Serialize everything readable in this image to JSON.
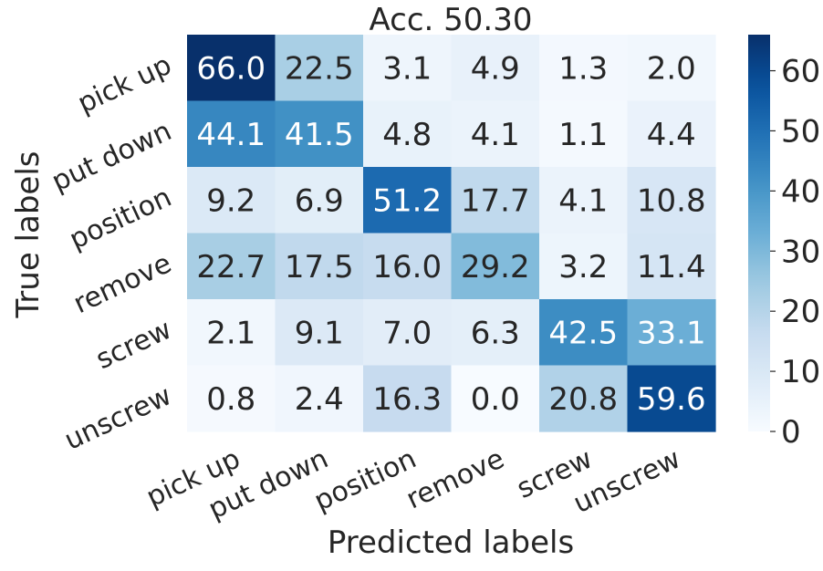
{
  "chart_data": {
    "type": "heatmap",
    "title": "Acc. 50.30",
    "xlabel": "Predicted labels",
    "ylabel": "True labels",
    "x_categories": [
      "pick up",
      "put down",
      "position",
      "remove",
      "screw",
      "unscrew"
    ],
    "y_categories": [
      "pick up",
      "put down",
      "position",
      "remove",
      "screw",
      "unscrew"
    ],
    "values": [
      [
        66.0,
        22.5,
        3.1,
        4.9,
        1.3,
        2.0
      ],
      [
        44.1,
        41.5,
        4.8,
        4.1,
        1.1,
        4.4
      ],
      [
        9.2,
        6.9,
        51.2,
        17.7,
        4.1,
        10.8
      ],
      [
        22.7,
        17.5,
        16.0,
        29.2,
        3.2,
        11.4
      ],
      [
        2.1,
        9.1,
        7.0,
        6.3,
        42.5,
        33.1
      ],
      [
        0.8,
        2.4,
        16.3,
        0.0,
        20.8,
        59.6
      ]
    ],
    "colorbar": {
      "min": 0,
      "max": 66.0,
      "ticks": [
        "0",
        "10",
        "20",
        "30",
        "40",
        "50",
        "60"
      ],
      "colormap": "Blues"
    },
    "grid": false,
    "legend": "none"
  }
}
